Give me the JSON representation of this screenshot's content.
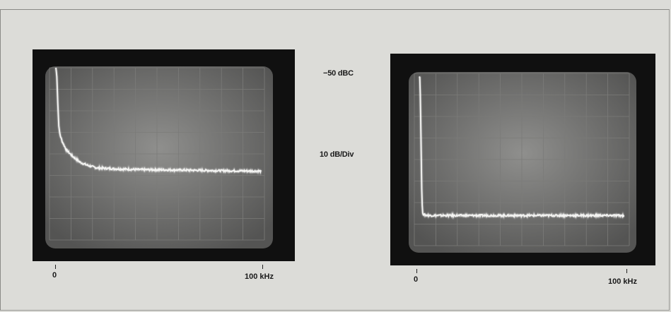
{
  "chart_data": [
    {
      "type": "line",
      "x_tick_labels": [
        "0",
        "100 kHz"
      ],
      "xlim": [
        0,
        100
      ],
      "grid": true,
      "series": [
        {
          "x": [
            0,
            0.5,
            1,
            1.5,
            2,
            3,
            5,
            8,
            12,
            16,
            20,
            30,
            40,
            60,
            80,
            100
          ],
          "y": [
            8.0,
            7.6,
            6.2,
            5.2,
            4.9,
            4.6,
            4.2,
            3.9,
            3.6,
            3.45,
            3.35,
            3.3,
            3.27,
            3.25,
            3.22,
            3.2
          ]
        }
      ]
    },
    {
      "type": "line",
      "x_tick_labels": [
        "0",
        "100 kHz"
      ],
      "xlim": [
        0,
        100
      ],
      "grid": true,
      "series": [
        {
          "x": [
            0,
            0.3,
            0.6,
            0.9,
            1.2,
            1.5,
            2,
            3,
            5,
            10,
            20,
            40,
            60,
            80,
            100
          ],
          "y": [
            7.9,
            7.8,
            6.5,
            4.5,
            2.6,
            1.6,
            1.45,
            1.42,
            1.4,
            1.4,
            1.4,
            1.4,
            1.4,
            1.4,
            1.4
          ]
        }
      ]
    }
  ],
  "annotations": {
    "reference_level": "−50 dBC",
    "scale": "10 dB/Div"
  }
}
